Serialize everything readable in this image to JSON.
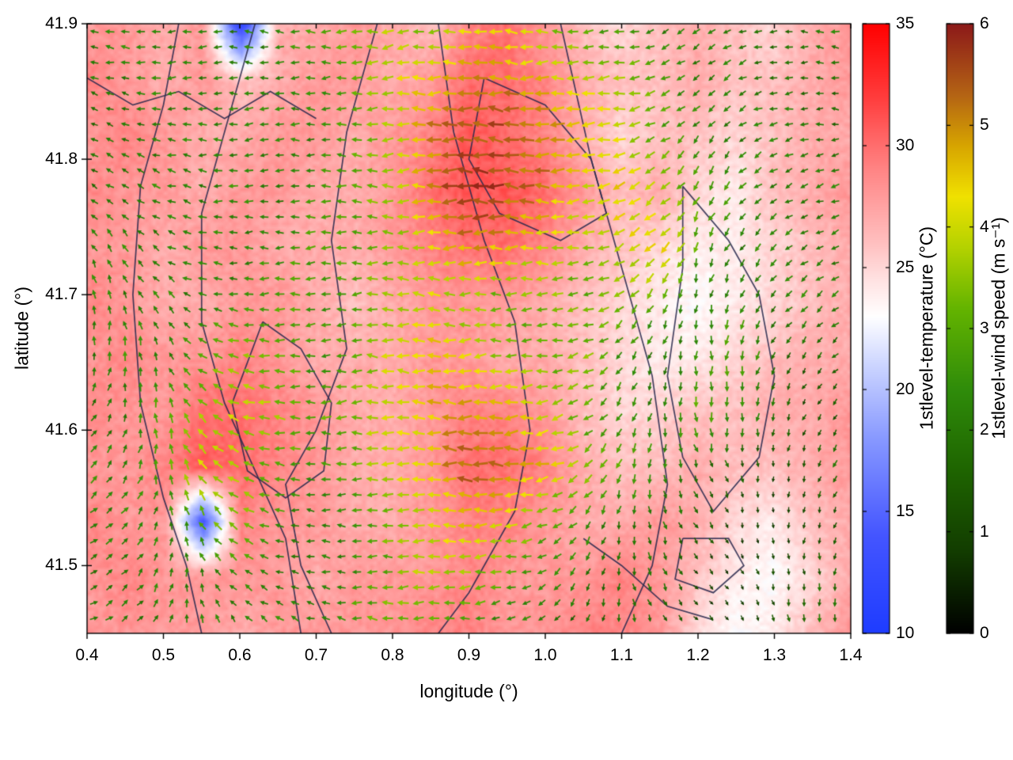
{
  "page": {
    "background": "#ffffff"
  },
  "chart_data": {
    "type": "heatmap",
    "subtype": "temperature-field-with-wind-vectors-and-contours",
    "title": "",
    "xlabel": "longitude (°)",
    "ylabel": "latitude (°)",
    "xlim": [
      0.4,
      1.4
    ],
    "ylim": [
      41.45,
      41.9
    ],
    "xticks": [
      "0.4",
      "0.5",
      "0.6",
      "0.7",
      "0.8",
      "0.9",
      "1.0",
      "1.1",
      "1.2",
      "1.3",
      "1.4"
    ],
    "yticks": [
      "41.5",
      "41.6",
      "41.7",
      "41.8",
      "41.9"
    ],
    "grid_lines": "off",
    "legend_position": "right-colorbars",
    "colorbars": [
      {
        "label": "1stlevel-temperature (°C)",
        "range": [
          10,
          35
        ],
        "ticks": [
          10,
          15,
          20,
          25,
          30,
          35
        ],
        "stops": [
          [
            10,
            "#1e3cff"
          ],
          [
            14,
            "#4455ff"
          ],
          [
            18,
            "#8899ff"
          ],
          [
            21,
            "#ccd5ff"
          ],
          [
            23,
            "#ffffff"
          ],
          [
            24.5,
            "#ffe2e2"
          ],
          [
            26,
            "#ffc0c0"
          ],
          [
            27.5,
            "#ffa3a3"
          ],
          [
            29,
            "#ff8585"
          ],
          [
            30.5,
            "#ff6262"
          ],
          [
            32,
            "#ff3c3c"
          ],
          [
            35,
            "#ff0000"
          ]
        ]
      },
      {
        "label": "1stlevel-wind speed (m s⁻¹)",
        "range": [
          0,
          6
        ],
        "ticks": [
          0,
          1,
          2,
          3,
          4,
          5,
          6
        ],
        "stops": [
          [
            0,
            "#000000"
          ],
          [
            0.8,
            "#123c00"
          ],
          [
            1.6,
            "#1e6400"
          ],
          [
            2.4,
            "#2f8c0a"
          ],
          [
            3.2,
            "#64b400"
          ],
          [
            3.8,
            "#b4d200"
          ],
          [
            4.3,
            "#f0e100"
          ],
          [
            4.8,
            "#d7a500"
          ],
          [
            5.3,
            "#b46414"
          ],
          [
            6,
            "#8c1919"
          ]
        ]
      }
    ],
    "grid_meta": {
      "rows_order": "north_to_south (lat 41.90 to 41.44)",
      "cols_order": "west_to_east (lon 0.40 to 1.40)",
      "nx": 21,
      "ny": 12
    },
    "temperature_c": [
      [
        28,
        28,
        27,
        28,
        12,
        27,
        27,
        28,
        27,
        26,
        29,
        30,
        28,
        26,
        25,
        26,
        27,
        26,
        25,
        27,
        28
      ],
      [
        29,
        28,
        27,
        28,
        26,
        27,
        28,
        28,
        27,
        28,
        30,
        30,
        29,
        27,
        26,
        26,
        27,
        26,
        26,
        27,
        28
      ],
      [
        28,
        29,
        28,
        27,
        27,
        28,
        28,
        27,
        28,
        29,
        31,
        30,
        29,
        27,
        25,
        26,
        26,
        25,
        26,
        27,
        27
      ],
      [
        29,
        28,
        28,
        27,
        28,
        28,
        27,
        27,
        28,
        30,
        31,
        31,
        30,
        28,
        26,
        27,
        25,
        24,
        26,
        27,
        28
      ],
      [
        28,
        28,
        27,
        28,
        28,
        27,
        27,
        27,
        28,
        29,
        30,
        30,
        29,
        27,
        26,
        25,
        24,
        24,
        25,
        26,
        27
      ],
      [
        29,
        28,
        27,
        27,
        28,
        28,
        27,
        26,
        27,
        28,
        28,
        28,
        27,
        26,
        25,
        24,
        23,
        24,
        25,
        26,
        27
      ],
      [
        28,
        29,
        28,
        28,
        29,
        28,
        27,
        27,
        27,
        28,
        28,
        27,
        27,
        26,
        25,
        24,
        24,
        25,
        26,
        27,
        27
      ],
      [
        29,
        28,
        28,
        30,
        30,
        29,
        28,
        27,
        27,
        28,
        29,
        29,
        28,
        26,
        25,
        25,
        26,
        26,
        27,
        27,
        28
      ],
      [
        28,
        28,
        29,
        31,
        30,
        29,
        28,
        27,
        27,
        28,
        30,
        30,
        29,
        27,
        26,
        26,
        27,
        26,
        26,
        27,
        28
      ],
      [
        29,
        28,
        28,
        14,
        29,
        28,
        28,
        27,
        27,
        28,
        29,
        29,
        28,
        27,
        27,
        28,
        27,
        25,
        24,
        26,
        27
      ],
      [
        28,
        29,
        28,
        28,
        28,
        28,
        27,
        28,
        28,
        28,
        29,
        28,
        28,
        28,
        29,
        28,
        26,
        24,
        23,
        25,
        27
      ],
      [
        28,
        28,
        28,
        28,
        27,
        28,
        28,
        28,
        28,
        29,
        29,
        28,
        28,
        29,
        29,
        28,
        25,
        23,
        24,
        26,
        28
      ]
    ],
    "wind_speed_ms": [
      [
        2,
        2.5,
        2,
        2.5,
        2,
        2.5,
        3,
        3.5,
        4,
        3,
        4.5,
        4,
        3.5,
        3,
        2.5,
        2,
        2.5,
        2,
        1.5,
        2,
        2.5
      ],
      [
        2,
        2,
        2.5,
        2,
        2.5,
        2,
        2.5,
        3,
        4,
        4.5,
        5,
        5,
        4.5,
        4,
        3.5,
        3,
        2,
        2.5,
        2,
        1.5,
        2
      ],
      [
        1.5,
        2,
        2,
        2.5,
        2,
        2.5,
        2,
        3,
        3.5,
        5,
        5.5,
        5.5,
        5,
        4.5,
        4,
        3,
        2.5,
        2,
        2.5,
        2,
        1.5
      ],
      [
        2,
        2,
        2.5,
        2,
        2.5,
        2,
        2.5,
        3,
        3.5,
        5,
        6,
        5.5,
        5,
        4,
        4.5,
        3.5,
        3,
        2.5,
        2,
        2,
        2.5
      ],
      [
        2,
        2.5,
        2,
        2.5,
        2,
        2.5,
        3,
        3,
        3.5,
        4,
        5,
        4.5,
        4,
        3.5,
        4,
        4.5,
        3,
        2,
        2.5,
        2,
        2
      ],
      [
        2.5,
        2,
        2.5,
        2,
        2.5,
        3,
        2.5,
        3,
        3.5,
        4,
        3.5,
        3,
        3.5,
        3,
        3.5,
        3,
        2,
        2.5,
        2,
        2.5,
        2
      ],
      [
        2,
        2.5,
        2,
        3,
        3.5,
        3,
        2.5,
        3,
        4,
        4.5,
        4,
        3.5,
        3,
        3.5,
        2.5,
        2,
        2.5,
        3,
        2,
        1.5,
        2
      ],
      [
        2,
        2,
        3,
        3.5,
        4,
        3.5,
        3,
        3.5,
        4,
        4.5,
        5,
        4.5,
        4,
        3,
        2.5,
        2,
        3,
        2.5,
        2,
        1,
        1.5
      ],
      [
        2.5,
        2,
        3,
        4,
        3.5,
        3,
        2.5,
        3,
        4,
        4.5,
        5.5,
        5,
        4.5,
        3.5,
        3,
        2.5,
        2,
        1.5,
        1,
        1.5,
        2
      ],
      [
        2,
        2.5,
        2,
        3,
        3.5,
        2.5,
        2,
        2.5,
        3.5,
        4,
        4.5,
        4,
        3,
        2.5,
        2,
        2,
        1.5,
        1,
        0.8,
        1,
        1.5
      ],
      [
        2,
        2,
        2.5,
        2,
        2.5,
        2,
        2,
        2.5,
        3,
        4,
        3.5,
        3,
        2.5,
        2,
        1.5,
        2,
        1,
        0.8,
        1,
        1.5,
        2
      ],
      [
        2.5,
        2,
        2,
        2.5,
        2,
        2.5,
        2,
        3,
        3.5,
        3,
        2.5,
        2,
        2,
        1.5,
        2,
        1.5,
        1,
        0.8,
        1.5,
        2,
        2
      ]
    ],
    "wind_dir_deg": [
      [
        170,
        175,
        180,
        185,
        180,
        175,
        180,
        185,
        190,
        185,
        180,
        175,
        180,
        185,
        190,
        200,
        210,
        190,
        180,
        175,
        170
      ],
      [
        160,
        170,
        180,
        180,
        175,
        180,
        185,
        180,
        185,
        180,
        175,
        180,
        185,
        180,
        190,
        200,
        220,
        210,
        190,
        180,
        170
      ],
      [
        150,
        160,
        170,
        180,
        185,
        180,
        175,
        180,
        185,
        180,
        175,
        170,
        180,
        185,
        190,
        210,
        230,
        220,
        200,
        190,
        180
      ],
      [
        140,
        150,
        160,
        170,
        180,
        185,
        180,
        175,
        180,
        185,
        180,
        175,
        180,
        190,
        200,
        220,
        240,
        230,
        210,
        200,
        190
      ],
      [
        120,
        130,
        150,
        170,
        180,
        180,
        185,
        180,
        175,
        180,
        185,
        180,
        185,
        190,
        210,
        230,
        250,
        240,
        220,
        210,
        200
      ],
      [
        100,
        110,
        130,
        160,
        180,
        185,
        180,
        185,
        180,
        175,
        180,
        185,
        180,
        190,
        220,
        240,
        260,
        250,
        230,
        220,
        210
      ],
      [
        80,
        90,
        120,
        150,
        170,
        180,
        185,
        180,
        175,
        180,
        185,
        180,
        185,
        200,
        230,
        250,
        270,
        260,
        240,
        230,
        220
      ],
      [
        60,
        80,
        100,
        140,
        160,
        175,
        180,
        185,
        180,
        175,
        180,
        185,
        190,
        210,
        240,
        260,
        280,
        270,
        250,
        240,
        230
      ],
      [
        45,
        60,
        90,
        130,
        160,
        170,
        180,
        180,
        185,
        180,
        175,
        180,
        190,
        220,
        250,
        270,
        290,
        280,
        260,
        250,
        240
      ],
      [
        30,
        45,
        80,
        120,
        150,
        170,
        175,
        180,
        180,
        185,
        180,
        185,
        200,
        230,
        260,
        280,
        300,
        290,
        270,
        260,
        250
      ],
      [
        20,
        40,
        70,
        110,
        140,
        160,
        170,
        175,
        180,
        180,
        185,
        190,
        210,
        240,
        270,
        290,
        310,
        300,
        280,
        270,
        260
      ],
      [
        10,
        30,
        60,
        100,
        130,
        150,
        165,
        170,
        175,
        180,
        185,
        195,
        220,
        250,
        280,
        300,
        320,
        310,
        290,
        280,
        270
      ]
    ],
    "contours": [
      [
        [
          0.52,
          41.9
        ],
        [
          0.5,
          41.84
        ],
        [
          0.47,
          41.78
        ],
        [
          0.46,
          41.7
        ],
        [
          0.47,
          41.62
        ],
        [
          0.5,
          41.55
        ],
        [
          0.53,
          41.5
        ],
        [
          0.55,
          41.45
        ]
      ],
      [
        [
          0.62,
          41.9
        ],
        [
          0.58,
          41.82
        ],
        [
          0.55,
          41.76
        ],
        [
          0.55,
          41.68
        ],
        [
          0.58,
          41.62
        ],
        [
          0.62,
          41.57
        ],
        [
          0.66,
          41.52
        ],
        [
          0.68,
          41.45
        ]
      ],
      [
        [
          0.78,
          41.9
        ],
        [
          0.74,
          41.82
        ],
        [
          0.72,
          41.74
        ],
        [
          0.74,
          41.66
        ],
        [
          0.7,
          41.6
        ],
        [
          0.66,
          41.56
        ],
        [
          0.68,
          41.5
        ],
        [
          0.72,
          41.45
        ]
      ],
      [
        [
          0.86,
          41.9
        ],
        [
          0.88,
          41.82
        ],
        [
          0.92,
          41.74
        ],
        [
          0.96,
          41.68
        ],
        [
          0.98,
          41.6
        ],
        [
          0.96,
          41.54
        ],
        [
          0.9,
          41.48
        ],
        [
          0.86,
          41.45
        ]
      ],
      [
        [
          1.02,
          41.9
        ],
        [
          1.06,
          41.8
        ],
        [
          1.1,
          41.72
        ],
        [
          1.14,
          41.64
        ],
        [
          1.16,
          41.56
        ],
        [
          1.14,
          41.5
        ],
        [
          1.1,
          41.45
        ]
      ],
      [
        [
          1.18,
          41.78
        ],
        [
          1.24,
          41.74
        ],
        [
          1.28,
          41.7
        ],
        [
          1.3,
          41.64
        ],
        [
          1.28,
          41.58
        ],
        [
          1.22,
          41.54
        ],
        [
          1.18,
          41.58
        ],
        [
          1.16,
          41.64
        ],
        [
          1.18,
          41.72
        ],
        [
          1.18,
          41.78
        ]
      ],
      [
        [
          1.18,
          41.52
        ],
        [
          1.24,
          41.52
        ],
        [
          1.26,
          41.5
        ],
        [
          1.22,
          41.48
        ],
        [
          1.17,
          41.49
        ],
        [
          1.18,
          41.52
        ]
      ],
      [
        [
          0.92,
          41.86
        ],
        [
          1.0,
          41.84
        ],
        [
          1.06,
          41.8
        ],
        [
          1.08,
          41.76
        ],
        [
          1.02,
          41.74
        ],
        [
          0.94,
          41.76
        ],
        [
          0.9,
          41.8
        ],
        [
          0.92,
          41.86
        ]
      ],
      [
        [
          0.63,
          41.68
        ],
        [
          0.68,
          41.66
        ],
        [
          0.72,
          41.62
        ],
        [
          0.71,
          41.57
        ],
        [
          0.66,
          41.55
        ],
        [
          0.61,
          41.57
        ],
        [
          0.59,
          41.62
        ],
        [
          0.63,
          41.68
        ]
      ],
      [
        [
          0.4,
          41.86
        ],
        [
          0.46,
          41.84
        ],
        [
          0.52,
          41.85
        ],
        [
          0.58,
          41.83
        ],
        [
          0.64,
          41.85
        ],
        [
          0.7,
          41.83
        ]
      ],
      [
        [
          1.05,
          41.52
        ],
        [
          1.1,
          41.5
        ],
        [
          1.16,
          41.47
        ],
        [
          1.22,
          41.46
        ]
      ]
    ]
  }
}
